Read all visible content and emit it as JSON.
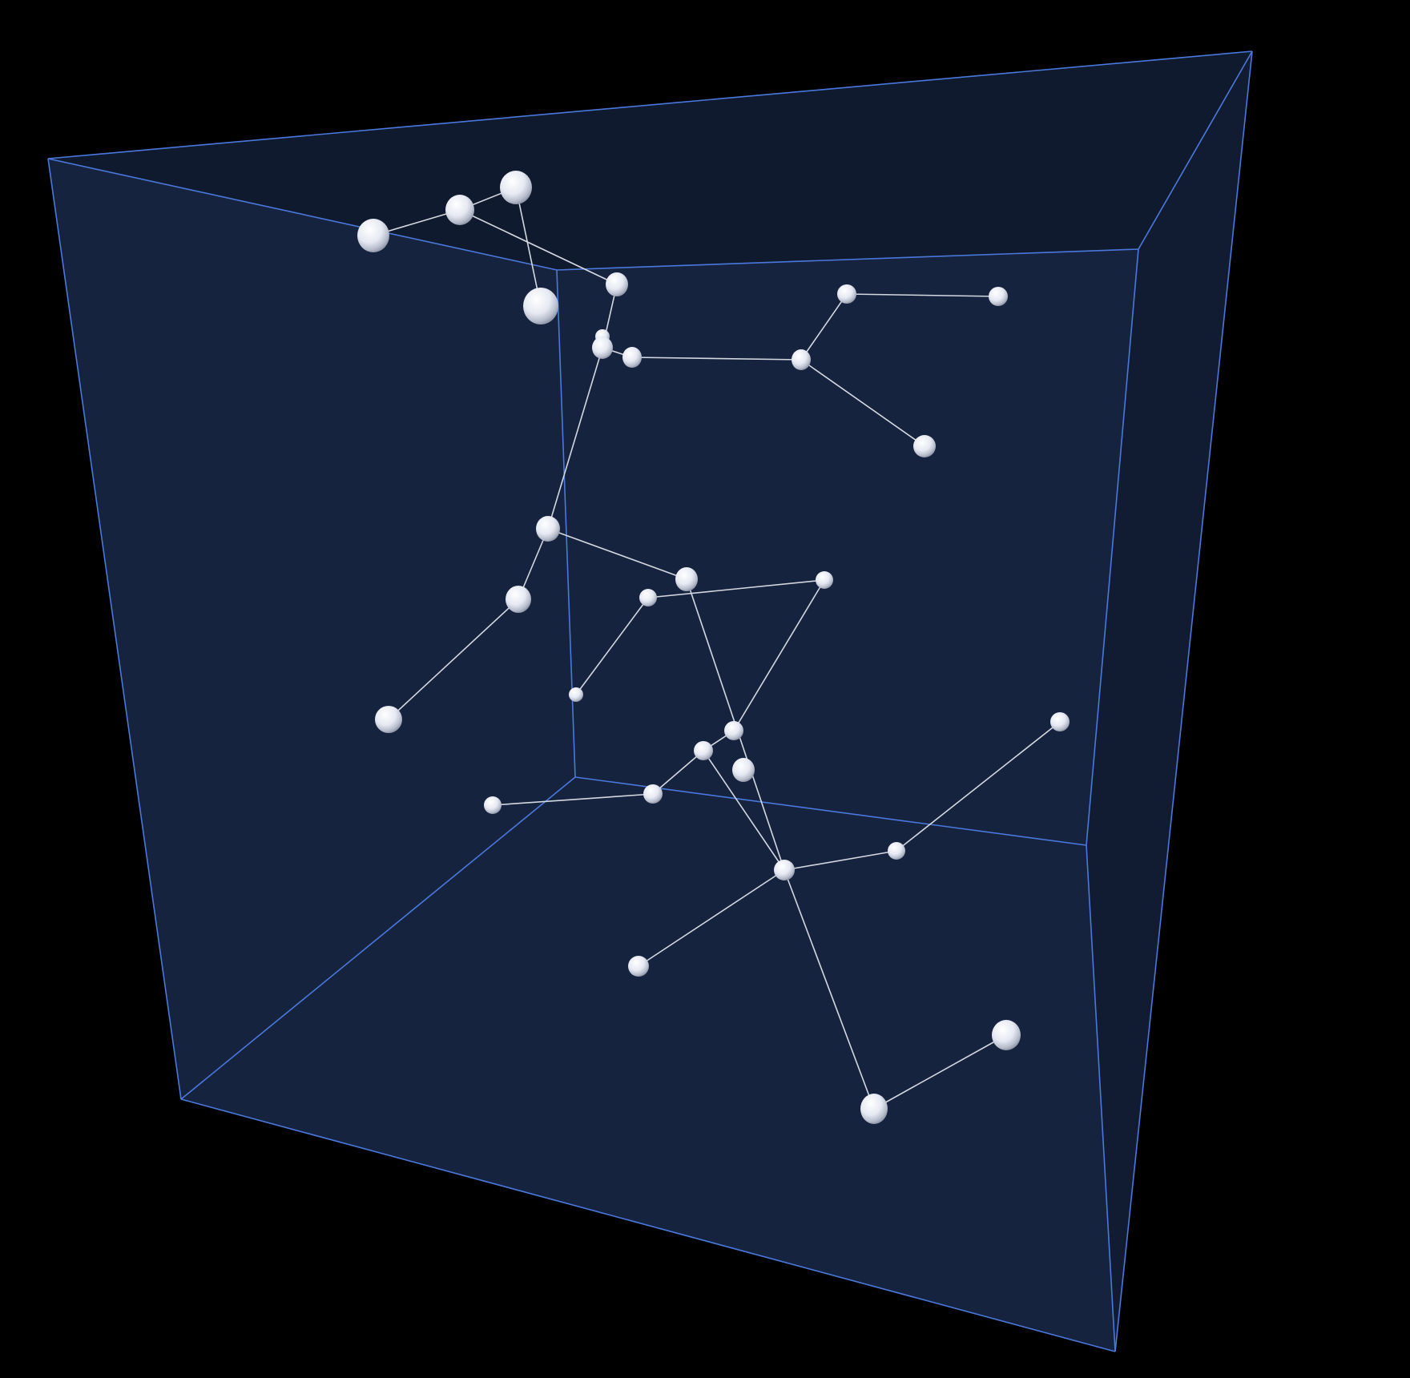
{
  "viewer": {
    "background_color": "#000000",
    "box_edge_color": "#4a78dc",
    "box_face_color": "#16233f",
    "box_face_dark_color": "#101a2e",
    "node_color": "#eef0f8",
    "link_color": "#d3d8e0",
    "node_icon": "sphere-icon"
  },
  "graph": {
    "node_count": 32,
    "link_count": 29
  }
}
